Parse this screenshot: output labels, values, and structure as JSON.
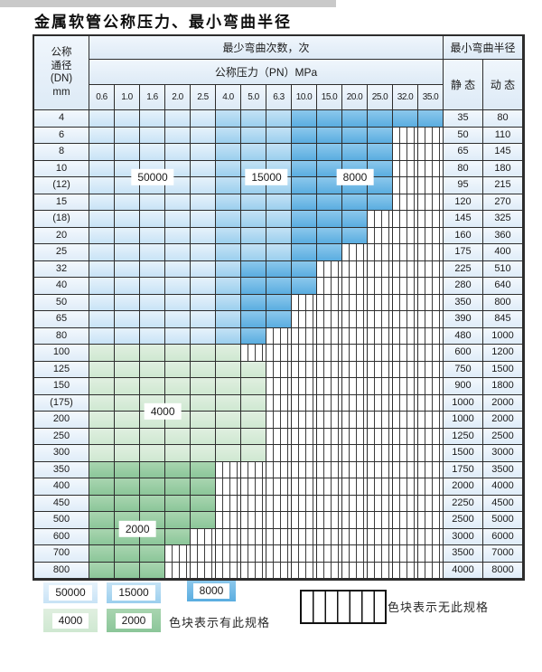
{
  "title": "金属软管公称压力、最小弯曲半径",
  "header": {
    "dn_lines": [
      "公称",
      "通径",
      "(DN)",
      "mm"
    ],
    "bend_times_label": "最少弯曲次数，次",
    "pressure_label": "公称压力（PN）MPa",
    "radius_label": "最小弯曲半径",
    "static_label": "静 态",
    "dynamic_label": "动 态"
  },
  "chart_data": {
    "type": "table",
    "pressure_columns": [
      "0.6",
      "1.0",
      "1.6",
      "2.0",
      "2.5",
      "4.0",
      "5.0",
      "6.3",
      "10.0",
      "15.0",
      "20.0",
      "25.0",
      "32.0",
      "35.0"
    ],
    "zone_meaning": {
      "50000": "最少弯曲次数 50000 次",
      "15000": "最少弯曲次数 15000 次",
      "8000": "最少弯曲次数 8000 次",
      "4000": "最少弯曲次数 4000 次",
      "2000": "最少弯曲次数 2000 次",
      "none": "无此规格"
    },
    "rows": [
      {
        "dn": "4",
        "segments": [
          [
            "50000",
            5
          ],
          [
            "15000",
            3
          ],
          [
            "8000",
            6
          ]
        ],
        "static": "35",
        "dynamic": "80"
      },
      {
        "dn": "6",
        "segments": [
          [
            "50000",
            5
          ],
          [
            "15000",
            3
          ],
          [
            "8000",
            4
          ]
        ],
        "static": "50",
        "dynamic": "110"
      },
      {
        "dn": "8",
        "segments": [
          [
            "50000",
            5
          ],
          [
            "15000",
            3
          ],
          [
            "8000",
            4
          ]
        ],
        "static": "65",
        "dynamic": "145"
      },
      {
        "dn": "10",
        "segments": [
          [
            "50000",
            5
          ],
          [
            "15000",
            3
          ],
          [
            "8000",
            4
          ]
        ],
        "static": "80",
        "dynamic": "180"
      },
      {
        "dn": "(12)",
        "segments": [
          [
            "50000",
            5
          ],
          [
            "15000",
            3
          ],
          [
            "8000",
            4
          ]
        ],
        "static": "95",
        "dynamic": "215"
      },
      {
        "dn": "15",
        "segments": [
          [
            "50000",
            5
          ],
          [
            "15000",
            3
          ],
          [
            "8000",
            4
          ]
        ],
        "static": "120",
        "dynamic": "270"
      },
      {
        "dn": "(18)",
        "segments": [
          [
            "50000",
            5
          ],
          [
            "15000",
            3
          ],
          [
            "8000",
            3
          ]
        ],
        "static": "145",
        "dynamic": "325"
      },
      {
        "dn": "20",
        "segments": [
          [
            "50000",
            5
          ],
          [
            "15000",
            3
          ],
          [
            "8000",
            3
          ]
        ],
        "static": "160",
        "dynamic": "360"
      },
      {
        "dn": "25",
        "segments": [
          [
            "50000",
            5
          ],
          [
            "15000",
            3
          ],
          [
            "8000",
            2
          ]
        ],
        "static": "175",
        "dynamic": "400"
      },
      {
        "dn": "32",
        "segments": [
          [
            "50000",
            5
          ],
          [
            "15000",
            1
          ],
          [
            "8000",
            3
          ]
        ],
        "static": "225",
        "dynamic": "510"
      },
      {
        "dn": "40",
        "segments": [
          [
            "50000",
            5
          ],
          [
            "15000",
            1
          ],
          [
            "8000",
            3
          ]
        ],
        "static": "280",
        "dynamic": "640"
      },
      {
        "dn": "50",
        "segments": [
          [
            "50000",
            5
          ],
          [
            "15000",
            1
          ],
          [
            "8000",
            2
          ]
        ],
        "static": "350",
        "dynamic": "800"
      },
      {
        "dn": "65",
        "segments": [
          [
            "50000",
            5
          ],
          [
            "15000",
            1
          ],
          [
            "8000",
            2
          ]
        ],
        "static": "390",
        "dynamic": "845"
      },
      {
        "dn": "80",
        "segments": [
          [
            "50000",
            5
          ],
          [
            "15000",
            1
          ],
          [
            "8000",
            1
          ]
        ],
        "static": "480",
        "dynamic": "1000"
      },
      {
        "dn": "100",
        "segments": [
          [
            "4000",
            6
          ]
        ],
        "static": "600",
        "dynamic": "1200"
      },
      {
        "dn": "125",
        "segments": [
          [
            "4000",
            7
          ]
        ],
        "static": "750",
        "dynamic": "1500"
      },
      {
        "dn": "150",
        "segments": [
          [
            "4000",
            7
          ]
        ],
        "static": "900",
        "dynamic": "1800"
      },
      {
        "dn": "(175)",
        "segments": [
          [
            "4000",
            7
          ]
        ],
        "static": "1000",
        "dynamic": "2000"
      },
      {
        "dn": "200",
        "segments": [
          [
            "4000",
            7
          ]
        ],
        "static": "1000",
        "dynamic": "2000"
      },
      {
        "dn": "250",
        "segments": [
          [
            "4000",
            7
          ]
        ],
        "static": "1250",
        "dynamic": "2500"
      },
      {
        "dn": "300",
        "segments": [
          [
            "4000",
            7
          ]
        ],
        "static": "1500",
        "dynamic": "3000"
      },
      {
        "dn": "350",
        "segments": [
          [
            "2000",
            5
          ]
        ],
        "static": "1750",
        "dynamic": "3500"
      },
      {
        "dn": "400",
        "segments": [
          [
            "2000",
            5
          ]
        ],
        "static": "2000",
        "dynamic": "4000"
      },
      {
        "dn": "450",
        "segments": [
          [
            "2000",
            5
          ]
        ],
        "static": "2250",
        "dynamic": "4500"
      },
      {
        "dn": "500",
        "segments": [
          [
            "2000",
            5
          ]
        ],
        "static": "2500",
        "dynamic": "5000"
      },
      {
        "dn": "600",
        "segments": [
          [
            "2000",
            4
          ]
        ],
        "static": "3000",
        "dynamic": "6000"
      },
      {
        "dn": "700",
        "segments": [
          [
            "2000",
            3
          ]
        ],
        "static": "3500",
        "dynamic": "7000"
      },
      {
        "dn": "800",
        "segments": [
          [
            "2000",
            3
          ]
        ],
        "static": "4000",
        "dynamic": "8000"
      }
    ],
    "overlay_labels": [
      {
        "text": "50000",
        "col": 2.5,
        "row": 4
      },
      {
        "text": "15000",
        "col": 7.0,
        "row": 4
      },
      {
        "text": "8000",
        "col": 10.5,
        "row": 4
      },
      {
        "text": "4000",
        "col": 2.9,
        "row": 18
      },
      {
        "text": "2000",
        "col": 1.9,
        "row": 25
      }
    ]
  },
  "legend": {
    "swatches": [
      {
        "value": "50000",
        "zone": "50000"
      },
      {
        "value": "15000",
        "zone": "15000"
      },
      {
        "value": "8000",
        "zone": "8000"
      },
      {
        "value": "4000",
        "zone": "4000"
      },
      {
        "value": "2000",
        "zone": "2000"
      }
    ],
    "has_spec_label": "色块表示有此规格",
    "no_spec_label": "色块表示无此规格"
  },
  "colors": {
    "zone_50000": [
      "#e6f2fb",
      "#c8e3f6"
    ],
    "zone_15000": [
      "#c4e2f5",
      "#9bcfee"
    ],
    "zone_8000": [
      "#8cc8ec",
      "#5aade0"
    ],
    "zone_4000": [
      "#e0efe0",
      "#cfe8d1"
    ],
    "zone_2000": [
      "#a9d5b0",
      "#8bc699"
    ],
    "zone_none_line": "#3d3d3d",
    "header_bg": [
      "#f0f6fc",
      "#ddeaf6"
    ],
    "label_bg": [
      "#f3f8fd",
      "#dfecf8"
    ],
    "grid": "#2d2d2d"
  }
}
